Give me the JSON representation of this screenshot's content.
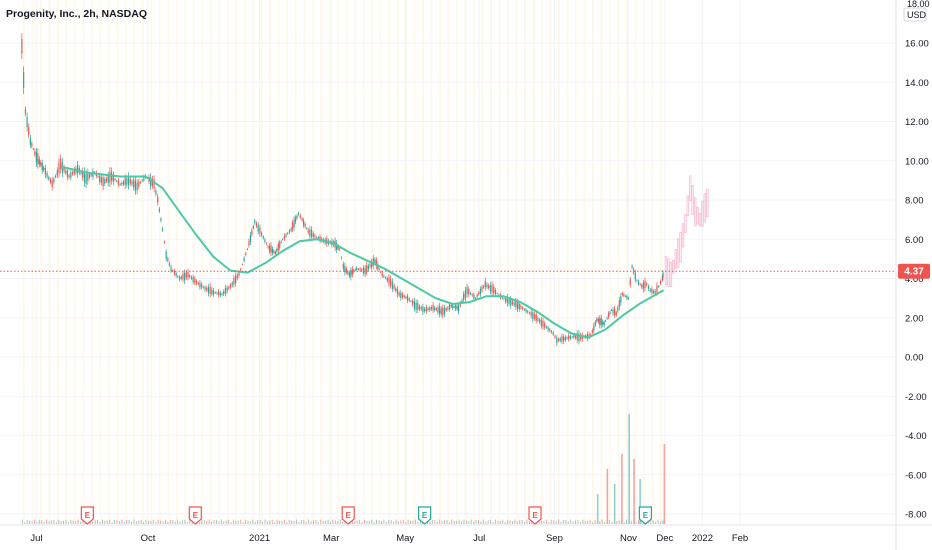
{
  "header": {
    "title": "Progenity, Inc., 2h, NASDAQ"
  },
  "currency_unit": "USD",
  "currency_unit_top": "18.00",
  "colors": {
    "up": "#26a69a",
    "down": "#ef5350",
    "ma": "#4cc9a6",
    "price_line": "#ef5350",
    "weekend_shade": "#fff8e6",
    "grid": "#f0f3fa",
    "axis_text": "#131722",
    "volume_up": "#8fd1c8",
    "volume_down": "#f4a3a1",
    "future_candles": "#f8bbd0"
  },
  "chart_data": {
    "type": "candlestick",
    "title": "Progenity, Inc., 2h, NASDAQ",
    "y_axis_ticks": [
      "16.00",
      "14.00",
      "12.00",
      "10.00",
      "8.00",
      "6.00",
      "4.00",
      "2.00",
      "0.00",
      "-2.00",
      "-4.00",
      "-6.00",
      "-8.00"
    ],
    "y_range": [
      -8.4,
      18
    ],
    "x_axis_ticks": [
      "Jul",
      "Oct",
      "2021",
      "Mar",
      "May",
      "Jul",
      "Sep",
      "Nov",
      "Dec",
      "2022",
      "Feb"
    ],
    "current_price": "4.37",
    "current_price_value": 4.37,
    "price_path": [
      [
        "2020-06-19",
        15.8
      ],
      [
        "2020-06-22",
        12.5
      ],
      [
        "2020-06-26",
        11.0
      ],
      [
        "2020-07-01",
        10.2
      ],
      [
        "2020-07-07",
        9.6
      ],
      [
        "2020-07-14",
        8.8
      ],
      [
        "2020-07-21",
        9.8
      ],
      [
        "2020-07-28",
        9.2
      ],
      [
        "2020-08-04",
        9.6
      ],
      [
        "2020-08-11",
        9.1
      ],
      [
        "2020-08-18",
        9.4
      ],
      [
        "2020-08-25",
        8.9
      ],
      [
        "2020-09-01",
        9.2
      ],
      [
        "2020-09-08",
        8.8
      ],
      [
        "2020-09-15",
        9.0
      ],
      [
        "2020-09-22",
        8.7
      ],
      [
        "2020-09-29",
        9.2
      ],
      [
        "2020-10-06",
        8.8
      ],
      [
        "2020-10-09",
        8.0
      ],
      [
        "2020-10-13",
        6.5
      ],
      [
        "2020-10-16",
        5.2
      ],
      [
        "2020-10-20",
        4.5
      ],
      [
        "2020-10-27",
        4.0
      ],
      [
        "2020-11-03",
        4.2
      ],
      [
        "2020-11-10",
        3.8
      ],
      [
        "2020-11-17",
        3.5
      ],
      [
        "2020-11-24",
        3.3
      ],
      [
        "2020-12-01",
        3.2
      ],
      [
        "2020-12-08",
        3.6
      ],
      [
        "2020-12-15",
        4.2
      ],
      [
        "2020-12-22",
        5.5
      ],
      [
        "2020-12-28",
        6.9
      ],
      [
        "2021-01-04",
        6.1
      ],
      [
        "2021-01-08",
        5.6
      ],
      [
        "2021-01-14",
        5.3
      ],
      [
        "2021-01-20",
        6.0
      ],
      [
        "2021-01-27",
        6.5
      ],
      [
        "2021-02-02",
        7.3
      ],
      [
        "2021-02-05",
        7.0
      ],
      [
        "2021-02-10",
        6.4
      ],
      [
        "2021-02-17",
        6.1
      ],
      [
        "2021-02-24",
        5.9
      ],
      [
        "2021-03-03",
        5.8
      ],
      [
        "2021-03-08",
        5.5
      ],
      [
        "2021-03-11",
        4.6
      ],
      [
        "2021-03-16",
        4.2
      ],
      [
        "2021-03-22",
        4.5
      ],
      [
        "2021-03-29",
        4.4
      ],
      [
        "2021-04-06",
        4.9
      ],
      [
        "2021-04-12",
        4.2
      ],
      [
        "2021-04-19",
        3.8
      ],
      [
        "2021-04-26",
        3.2
      ],
      [
        "2021-05-03",
        3.0
      ],
      [
        "2021-05-10",
        2.6
      ],
      [
        "2021-05-17",
        2.4
      ],
      [
        "2021-05-24",
        2.5
      ],
      [
        "2021-06-01",
        2.3
      ],
      [
        "2021-06-08",
        2.6
      ],
      [
        "2021-06-14",
        2.5
      ],
      [
        "2021-06-21",
        3.4
      ],
      [
        "2021-06-28",
        3.0
      ],
      [
        "2021-07-06",
        3.7
      ],
      [
        "2021-07-13",
        3.4
      ],
      [
        "2021-07-20",
        3.0
      ],
      [
        "2021-07-27",
        2.8
      ],
      [
        "2021-08-03",
        2.6
      ],
      [
        "2021-08-10",
        2.3
      ],
      [
        "2021-08-17",
        2.0
      ],
      [
        "2021-08-24",
        1.6
      ],
      [
        "2021-08-31",
        1.2
      ],
      [
        "2021-09-03",
        0.85
      ],
      [
        "2021-09-10",
        0.95
      ],
      [
        "2021-09-17",
        1.05
      ],
      [
        "2021-09-24",
        1.0
      ],
      [
        "2021-10-01",
        1.1
      ],
      [
        "2021-10-06",
        1.9
      ],
      [
        "2021-10-12",
        1.7
      ],
      [
        "2021-10-18",
        2.4
      ],
      [
        "2021-10-22",
        2.2
      ],
      [
        "2021-10-27",
        3.2
      ],
      [
        "2021-11-01",
        3.0
      ],
      [
        "2021-11-04",
        4.6
      ],
      [
        "2021-11-08",
        3.9
      ],
      [
        "2021-11-12",
        3.6
      ],
      [
        "2021-11-16",
        3.7
      ],
      [
        "2021-11-19",
        3.4
      ],
      [
        "2021-11-23",
        3.3
      ],
      [
        "2021-11-26",
        3.6
      ],
      [
        "2021-11-29",
        4.0
      ],
      [
        "2021-11-30",
        4.37
      ]
    ],
    "moving_average_path": [
      [
        "2020-07-21",
        9.7
      ],
      [
        "2020-08-11",
        9.4
      ],
      [
        "2020-09-08",
        9.2
      ],
      [
        "2020-09-29",
        9.2
      ],
      [
        "2020-10-13",
        8.6
      ],
      [
        "2020-10-27",
        7.4
      ],
      [
        "2020-11-10",
        6.2
      ],
      [
        "2020-11-24",
        5.1
      ],
      [
        "2020-12-08",
        4.4
      ],
      [
        "2020-12-22",
        4.3
      ],
      [
        "2021-01-06",
        4.8
      ],
      [
        "2021-01-20",
        5.4
      ],
      [
        "2021-02-03",
        5.9
      ],
      [
        "2021-02-17",
        6.0
      ],
      [
        "2021-03-03",
        5.8
      ],
      [
        "2021-03-17",
        5.3
      ],
      [
        "2021-03-31",
        4.9
      ],
      [
        "2021-04-14",
        4.5
      ],
      [
        "2021-04-28",
        4.0
      ],
      [
        "2021-05-12",
        3.5
      ],
      [
        "2021-05-26",
        3.0
      ],
      [
        "2021-06-09",
        2.7
      ],
      [
        "2021-06-23",
        2.8
      ],
      [
        "2021-07-07",
        3.1
      ],
      [
        "2021-07-21",
        3.1
      ],
      [
        "2021-08-04",
        2.8
      ],
      [
        "2021-08-18",
        2.3
      ],
      [
        "2021-09-01",
        1.7
      ],
      [
        "2021-09-15",
        1.2
      ],
      [
        "2021-09-29",
        1.0
      ],
      [
        "2021-10-13",
        1.4
      ],
      [
        "2021-10-27",
        2.1
      ],
      [
        "2021-11-10",
        2.7
      ],
      [
        "2021-11-24",
        3.2
      ],
      [
        "2021-11-30",
        3.4
      ]
    ],
    "forecast_path": [
      [
        "2021-12-02",
        4.4
      ],
      [
        "2021-12-06",
        4.2
      ],
      [
        "2021-12-10",
        5.0
      ],
      [
        "2021-12-14",
        5.6
      ],
      [
        "2021-12-18",
        6.8
      ],
      [
        "2021-12-22",
        8.6
      ],
      [
        "2021-12-26",
        7.4
      ],
      [
        "2021-12-30",
        7.0
      ],
      [
        "2022-01-03",
        7.6
      ],
      [
        "2022-01-07",
        8.1
      ]
    ],
    "earnings_markers": [
      {
        "date": "2020-08-12",
        "type": "down",
        "label": "E"
      },
      {
        "date": "2020-11-09",
        "type": "down",
        "label": "E"
      },
      {
        "date": "2021-03-15",
        "type": "down",
        "label": "E"
      },
      {
        "date": "2021-05-17",
        "type": "up",
        "label": "E"
      },
      {
        "date": "2021-08-16",
        "type": "down",
        "label": "E"
      },
      {
        "date": "2021-11-15",
        "type": "up",
        "label": "E"
      }
    ],
    "volume_spikes": [
      [
        "2021-10-06",
        30
      ],
      [
        "2021-10-14",
        55
      ],
      [
        "2021-10-20",
        40
      ],
      [
        "2021-10-26",
        70
      ],
      [
        "2021-11-01",
        110
      ],
      [
        "2021-11-05",
        65
      ],
      [
        "2021-11-10",
        45
      ],
      [
        "2021-11-30",
        80
      ]
    ]
  }
}
